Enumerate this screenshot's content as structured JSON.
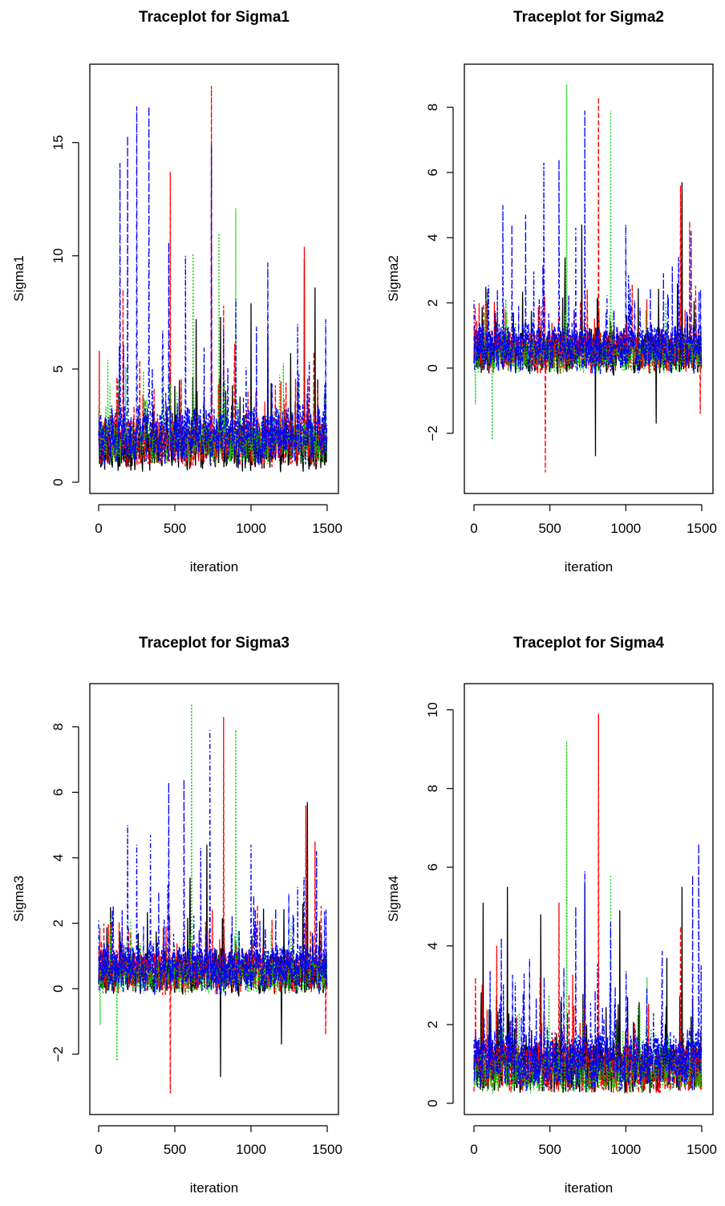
{
  "chart_data": [
    {
      "type": "line",
      "title": "Traceplot for Sigma1",
      "xlabel": "iteration",
      "ylabel": "Sigma1",
      "xlim": [
        0,
        1500
      ],
      "ylim": [
        0,
        18
      ],
      "xticks": [
        "0",
        "500",
        "1000",
        "1500"
      ],
      "yticks": [
        "0",
        "5",
        "10",
        "15"
      ],
      "grid": false,
      "n_iterations": 1500,
      "series": [
        {
          "color": "#000000",
          "linestyle": "solid",
          "baseline": 1.5,
          "noise": 0.9,
          "low": 0.4,
          "spikes": [
            [
              470,
              5.0
            ],
            [
              640,
              7.2
            ],
            [
              800,
              7.3
            ],
            [
              1000,
              7.9
            ],
            [
              1110,
              6.6
            ],
            [
              1260,
              5.7
            ],
            [
              1350,
              9.9
            ],
            [
              1420,
              8.6
            ]
          ]
        },
        {
          "color": "#ff0000",
          "linestyle": "dashed",
          "baseline": 1.8,
          "noise": 1.0,
          "low": 0.4,
          "spikes": [
            [
              5,
              5.8
            ],
            [
              160,
              8.5
            ],
            [
              470,
              13.7
            ],
            [
              740,
              17.5
            ],
            [
              820,
              7.8
            ],
            [
              1350,
              10.4
            ]
          ]
        },
        {
          "color": "#00cd00",
          "linestyle": "dotted",
          "baseline": 1.8,
          "noise": 0.9,
          "low": 0.4,
          "spikes": [
            [
              60,
              5.4
            ],
            [
              620,
              10.1
            ],
            [
              790,
              11.0
            ],
            [
              900,
              12.1
            ],
            [
              1480,
              3.8
            ]
          ]
        },
        {
          "color": "#0000ff",
          "linestyle": "dotdash",
          "baseline": 2.1,
          "noise": 1.2,
          "low": 0.5,
          "spikes": [
            [
              140,
              14.1
            ],
            [
              190,
              15.3
            ],
            [
              250,
              16.6
            ],
            [
              330,
              16.6
            ],
            [
              460,
              10.6
            ],
            [
              570,
              10.0
            ],
            [
              740,
              14.9
            ],
            [
              900,
              8.1
            ],
            [
              1110,
              9.7
            ],
            [
              1490,
              7.2
            ]
          ]
        }
      ]
    },
    {
      "type": "line",
      "title": "Traceplot for Sigma2",
      "xlabel": "iteration",
      "ylabel": "Sigma2",
      "xlim": [
        0,
        1500
      ],
      "ylim": [
        -3.5,
        9
      ],
      "xticks": [
        "0",
        "500",
        "1000",
        "1500"
      ],
      "yticks": [
        "−2",
        "0",
        "2",
        "4",
        "6",
        "8"
      ],
      "grid": false,
      "n_iterations": 1500,
      "series": [
        {
          "color": "#000000",
          "linestyle": "solid",
          "baseline": 0.5,
          "noise": 0.6,
          "low": -1.0,
          "spikes": [
            [
              600,
              3.4
            ],
            [
              710,
              4.4
            ],
            [
              800,
              -2.7
            ],
            [
              1200,
              -1.7
            ],
            [
              1370,
              5.7
            ]
          ]
        },
        {
          "color": "#ff0000",
          "linestyle": "dashed",
          "baseline": 0.5,
          "noise": 0.6,
          "low": -1.2,
          "spikes": [
            [
              470,
              -3.2
            ],
            [
              820,
              8.3
            ],
            [
              1360,
              5.6
            ],
            [
              1420,
              4.5
            ],
            [
              1490,
              -1.4
            ]
          ]
        },
        {
          "color": "#00cd00",
          "linestyle": "dotted",
          "baseline": 0.4,
          "noise": 0.5,
          "low": -1.0,
          "spikes": [
            [
              10,
              -1.1
            ],
            [
              120,
              -2.2
            ],
            [
              610,
              8.7
            ],
            [
              900,
              7.9
            ]
          ]
        },
        {
          "color": "#0000ff",
          "linestyle": "dotdash",
          "baseline": 0.6,
          "noise": 0.7,
          "low": -1.3,
          "spikes": [
            [
              190,
              5.0
            ],
            [
              250,
              4.4
            ],
            [
              340,
              4.7
            ],
            [
              460,
              6.3
            ],
            [
              560,
              6.4
            ],
            [
              670,
              4.3
            ],
            [
              730,
              7.9
            ],
            [
              1000,
              4.4
            ],
            [
              1430,
              4.2
            ]
          ]
        }
      ]
    },
    {
      "type": "line",
      "title": "Traceplot for Sigma3",
      "xlabel": "iteration",
      "ylabel": "Sigma3",
      "xlim": [
        0,
        1500
      ],
      "ylim": [
        -3.5,
        9
      ],
      "xticks": [
        "0",
        "500",
        "1000",
        "1500"
      ],
      "yticks": [
        "−2",
        "0",
        "2",
        "4",
        "6",
        "8"
      ],
      "grid": false,
      "n_iterations": 1500,
      "series": [
        {
          "color": "#000000",
          "linestyle": "solid",
          "baseline": 0.5,
          "noise": 0.6,
          "low": -1.0,
          "spikes": [
            [
              600,
              3.4
            ],
            [
              710,
              4.4
            ],
            [
              800,
              -2.7
            ],
            [
              1200,
              -1.7
            ],
            [
              1370,
              5.7
            ]
          ]
        },
        {
          "color": "#ff0000",
          "linestyle": "dashed",
          "baseline": 0.5,
          "noise": 0.6,
          "low": -1.2,
          "spikes": [
            [
              470,
              -3.2
            ],
            [
              820,
              8.3
            ],
            [
              1360,
              5.6
            ],
            [
              1420,
              4.5
            ],
            [
              1490,
              -1.4
            ]
          ]
        },
        {
          "color": "#00cd00",
          "linestyle": "dotted",
          "baseline": 0.4,
          "noise": 0.5,
          "low": -1.0,
          "spikes": [
            [
              10,
              -1.1
            ],
            [
              120,
              -2.2
            ],
            [
              610,
              8.7
            ],
            [
              900,
              7.9
            ]
          ]
        },
        {
          "color": "#0000ff",
          "linestyle": "dotdash",
          "baseline": 0.6,
          "noise": 0.7,
          "low": -1.3,
          "spikes": [
            [
              190,
              5.0
            ],
            [
              250,
              4.4
            ],
            [
              340,
              4.7
            ],
            [
              460,
              6.3
            ],
            [
              560,
              6.4
            ],
            [
              670,
              4.3
            ],
            [
              730,
              7.9
            ],
            [
              1000,
              4.4
            ],
            [
              1430,
              4.2
            ]
          ]
        }
      ]
    },
    {
      "type": "line",
      "title": "Traceplot for Sigma4",
      "xlabel": "iteration",
      "ylabel": "Sigma4",
      "xlim": [
        0,
        1500
      ],
      "ylim": [
        0,
        10.4
      ],
      "xticks": [
        "0",
        "500",
        "1000",
        "1500"
      ],
      "yticks": [
        "0",
        "2",
        "4",
        "6",
        "8",
        "10"
      ],
      "grid": false,
      "n_iterations": 1500,
      "series": [
        {
          "color": "#000000",
          "linestyle": "solid",
          "baseline": 0.9,
          "noise": 0.6,
          "low": 0.25,
          "spikes": [
            [
              60,
              5.1
            ],
            [
              220,
              5.5
            ],
            [
              440,
              4.8
            ],
            [
              730,
              5.6
            ],
            [
              960,
              4.9
            ],
            [
              1270,
              3.7
            ],
            [
              1370,
              5.5
            ]
          ]
        },
        {
          "color": "#ff0000",
          "linestyle": "dashed",
          "baseline": 0.9,
          "noise": 0.6,
          "low": 0.25,
          "spikes": [
            [
              10,
              3.2
            ],
            [
              150,
              4.0
            ],
            [
              560,
              5.1
            ],
            [
              820,
              9.9
            ],
            [
              1360,
              4.5
            ]
          ]
        },
        {
          "color": "#00cd00",
          "linestyle": "dotted",
          "baseline": 0.8,
          "noise": 0.5,
          "low": 0.25,
          "spikes": [
            [
              610,
              9.2
            ],
            [
              900,
              5.8
            ],
            [
              1140,
              3.2
            ]
          ]
        },
        {
          "color": "#0000ff",
          "linestyle": "dotdash",
          "baseline": 1.1,
          "noise": 0.7,
          "low": 0.3,
          "spikes": [
            [
              180,
              4.2
            ],
            [
              330,
              3.3
            ],
            [
              670,
              5.0
            ],
            [
              730,
              5.9
            ],
            [
              900,
              4.6
            ],
            [
              1440,
              5.8
            ],
            [
              1480,
              6.6
            ]
          ]
        }
      ]
    }
  ]
}
